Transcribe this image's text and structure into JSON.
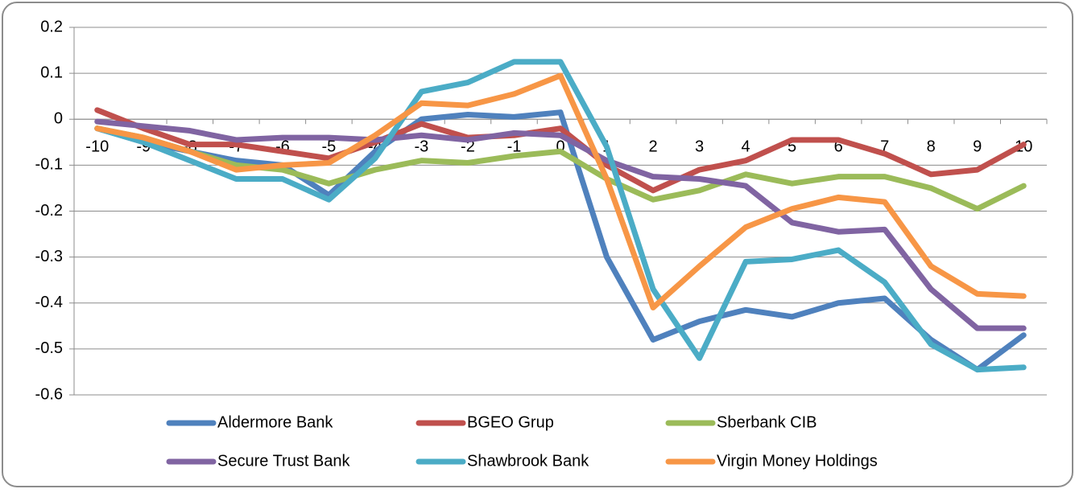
{
  "chart_data": {
    "type": "line",
    "categories": [
      "-10",
      "-9",
      "-8",
      "-7",
      "-6",
      "-5",
      "-4",
      "-3",
      "-2",
      "-1",
      "0",
      "1",
      "2",
      "3",
      "4",
      "5",
      "6",
      "7",
      "8",
      "9",
      "10"
    ],
    "series": [
      {
        "name": "Aldermore Bank",
        "color": "#4F81BD",
        "values": [
          -0.02,
          -0.05,
          -0.07,
          -0.09,
          -0.1,
          -0.165,
          -0.07,
          0.0,
          0.01,
          0.005,
          0.015,
          -0.3,
          -0.48,
          -0.44,
          -0.415,
          -0.43,
          -0.4,
          -0.39,
          -0.48,
          -0.545,
          -0.47
        ]
      },
      {
        "name": "BGEO Grup",
        "color": "#C0504D",
        "values": [
          0.02,
          -0.02,
          -0.055,
          -0.055,
          -0.07,
          -0.085,
          -0.05,
          -0.01,
          -0.04,
          -0.035,
          -0.02,
          -0.1,
          -0.155,
          -0.11,
          -0.09,
          -0.045,
          -0.045,
          -0.075,
          -0.12,
          -0.11,
          -0.055
        ]
      },
      {
        "name": "Sberbank CIB",
        "color": "#9BBB59",
        "values": [
          -0.02,
          -0.04,
          -0.07,
          -0.1,
          -0.11,
          -0.14,
          -0.11,
          -0.09,
          -0.095,
          -0.08,
          -0.07,
          -0.13,
          -0.175,
          -0.155,
          -0.12,
          -0.14,
          -0.125,
          -0.125,
          -0.15,
          -0.195,
          -0.145
        ]
      },
      {
        "name": "Secure Trust Bank",
        "color": "#8064A2",
        "values": [
          -0.005,
          -0.015,
          -0.025,
          -0.045,
          -0.04,
          -0.04,
          -0.045,
          -0.035,
          -0.045,
          -0.03,
          -0.035,
          -0.09,
          -0.125,
          -0.13,
          -0.145,
          -0.225,
          -0.245,
          -0.24,
          -0.37,
          -0.455,
          -0.455
        ]
      },
      {
        "name": "Shawbrook Bank",
        "color": "#4BACC6",
        "values": [
          -0.02,
          -0.05,
          -0.09,
          -0.13,
          -0.13,
          -0.175,
          -0.085,
          0.06,
          0.08,
          0.125,
          0.125,
          -0.06,
          -0.37,
          -0.52,
          -0.31,
          -0.305,
          -0.285,
          -0.355,
          -0.49,
          -0.545,
          -0.54
        ]
      },
      {
        "name": "Virgin Money Holdings",
        "color": "#F79646",
        "values": [
          -0.02,
          -0.04,
          -0.07,
          -0.11,
          -0.1,
          -0.095,
          -0.035,
          0.035,
          0.03,
          0.055,
          0.095,
          -0.13,
          -0.41,
          -0.32,
          -0.235,
          -0.195,
          -0.17,
          -0.18,
          -0.32,
          -0.38,
          -0.385
        ]
      }
    ],
    "ylim": [
      -0.6,
      0.2
    ],
    "yticks": [
      0.2,
      0.1,
      0,
      -0.1,
      -0.2,
      -0.3,
      -0.4,
      -0.5,
      -0.6
    ],
    "grid": true
  }
}
